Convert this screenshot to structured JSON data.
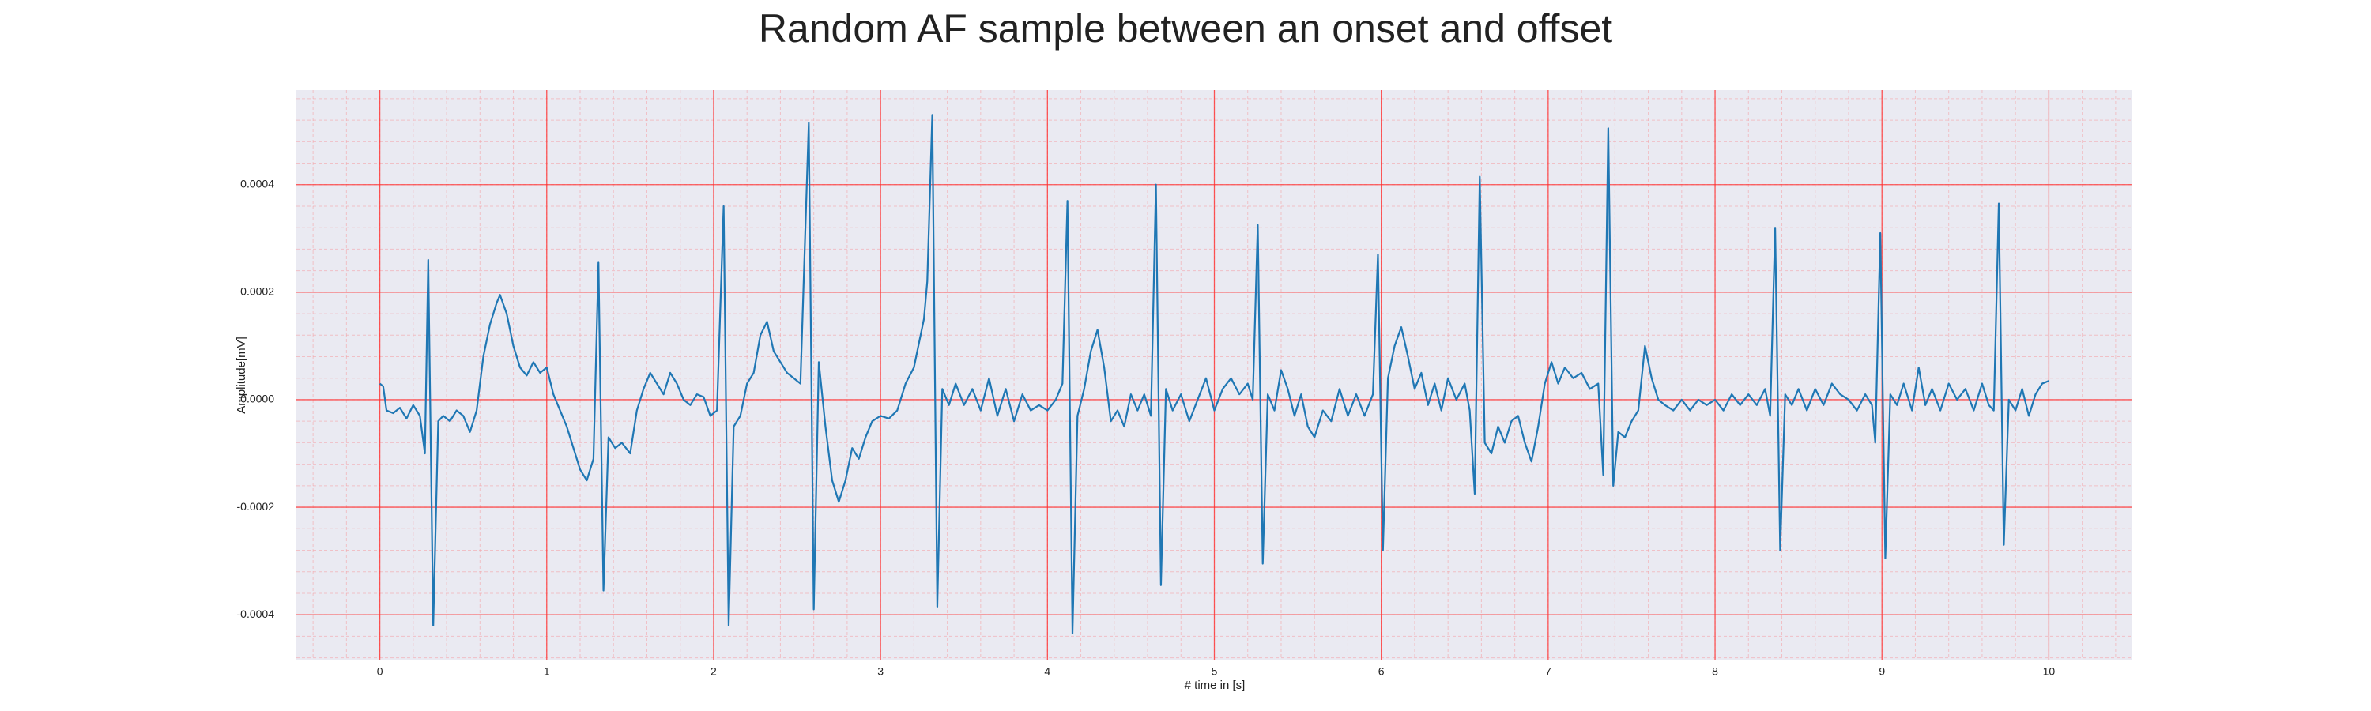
{
  "chart_data": {
    "type": "line",
    "title": "Random AF sample between an onset and offset",
    "xlabel": "# time in [s]",
    "ylabel": "Amplitude[mV]",
    "color": "#1f77b4",
    "grid": true,
    "minor_grid": true,
    "xlim": [
      -0.5,
      10.5
    ],
    "ylim": [
      -0.000485,
      0.000576
    ],
    "xticks": [
      0,
      1,
      2,
      3,
      4,
      5,
      6,
      7,
      8,
      9,
      10
    ],
    "yticks": [
      -0.0004,
      -0.0002,
      {
        "value": 0,
        "label": "0.0000"
      },
      0.0002,
      0.0004
    ],
    "x": [
      0,
      0.02,
      0.04,
      0.08,
      0.12,
      0.16,
      0.2,
      0.24,
      0.27,
      0.29,
      0.32,
      0.35,
      0.38,
      0.42,
      0.46,
      0.5,
      0.54,
      0.58,
      0.62,
      0.66,
      0.7,
      0.72,
      0.76,
      0.8,
      0.84,
      0.88,
      0.92,
      0.96,
      1.0,
      1.04,
      1.08,
      1.12,
      1.16,
      1.2,
      1.24,
      1.28,
      1.31,
      1.34,
      1.37,
      1.41,
      1.45,
      1.5,
      1.54,
      1.58,
      1.62,
      1.66,
      1.7,
      1.74,
      1.78,
      1.82,
      1.86,
      1.9,
      1.94,
      1.98,
      2.02,
      2.06,
      2.09,
      2.12,
      2.16,
      2.2,
      2.24,
      2.28,
      2.32,
      2.36,
      2.4,
      2.44,
      2.48,
      2.52,
      2.57,
      2.6,
      2.63,
      2.67,
      2.71,
      2.75,
      2.79,
      2.83,
      2.87,
      2.91,
      2.95,
      3.0,
      3.05,
      3.1,
      3.15,
      3.2,
      3.26,
      3.28,
      3.31,
      3.34,
      3.37,
      3.41,
      3.45,
      3.5,
      3.55,
      3.6,
      3.65,
      3.7,
      3.75,
      3.8,
      3.85,
      3.9,
      3.95,
      4.0,
      4.05,
      4.09,
      4.12,
      4.15,
      4.18,
      4.22,
      4.26,
      4.3,
      4.34,
      4.38,
      4.42,
      4.46,
      4.5,
      4.54,
      4.58,
      4.62,
      4.65,
      4.68,
      4.71,
      4.75,
      4.8,
      4.85,
      4.9,
      4.95,
      5.0,
      5.05,
      5.1,
      5.15,
      5.2,
      5.23,
      5.26,
      5.29,
      5.32,
      5.36,
      5.4,
      5.44,
      5.48,
      5.52,
      5.56,
      5.6,
      5.65,
      5.7,
      5.75,
      5.8,
      5.85,
      5.9,
      5.95,
      5.98,
      6.01,
      6.04,
      6.08,
      6.12,
      6.16,
      6.2,
      6.24,
      6.28,
      6.32,
      6.36,
      6.4,
      6.45,
      6.5,
      6.53,
      6.56,
      6.59,
      6.62,
      6.66,
      6.7,
      6.74,
      6.78,
      6.82,
      6.86,
      6.9,
      6.94,
      6.98,
      7.02,
      7.06,
      7.1,
      7.15,
      7.2,
      7.25,
      7.3,
      7.33,
      7.36,
      7.39,
      7.42,
      7.46,
      7.5,
      7.54,
      7.58,
      7.62,
      7.66,
      7.7,
      7.75,
      7.8,
      7.85,
      7.9,
      7.95,
      8.0,
      8.05,
      8.1,
      8.15,
      8.2,
      8.25,
      8.3,
      8.33,
      8.36,
      8.39,
      8.42,
      8.46,
      8.5,
      8.55,
      8.6,
      8.65,
      8.7,
      8.75,
      8.8,
      8.85,
      8.9,
      8.94,
      8.96,
      8.99,
      9.02,
      9.05,
      9.09,
      9.13,
      9.18,
      9.22,
      9.26,
      9.3,
      9.35,
      9.4,
      9.45,
      9.5,
      9.55,
      9.6,
      9.64,
      9.67,
      9.7,
      9.73,
      9.76,
      9.8,
      9.84,
      9.88,
      9.92,
      9.96,
      10.0
    ],
    "values": [
      3e-05,
      2.5e-05,
      -2e-05,
      -2.5e-05,
      -1.5e-05,
      -3.5e-05,
      -1e-05,
      -3e-05,
      -0.0001,
      0.00026,
      -0.00042,
      -4e-05,
      -3e-05,
      -4e-05,
      -2e-05,
      -3e-05,
      -6e-05,
      -2e-05,
      8e-05,
      0.00014,
      0.00018,
      0.000195,
      0.00016,
      0.0001,
      6e-05,
      4.5e-05,
      7e-05,
      5e-05,
      6e-05,
      1e-05,
      -2e-05,
      -5e-05,
      -9e-05,
      -0.00013,
      -0.00015,
      -0.00011,
      0.000255,
      -0.000355,
      -7e-05,
      -9e-05,
      -8e-05,
      -0.0001,
      -2e-05,
      2e-05,
      5e-05,
      3e-05,
      1e-05,
      5e-05,
      3e-05,
      0.0,
      -1e-05,
      1e-05,
      5e-06,
      -3e-05,
      -2e-05,
      0.00036,
      -0.00042,
      -5e-05,
      -3e-05,
      3e-05,
      5e-05,
      0.00012,
      0.000145,
      9e-05,
      7e-05,
      5e-05,
      4e-05,
      3e-05,
      0.000515,
      -0.00039,
      7e-05,
      -5e-05,
      -0.00015,
      -0.00019,
      -0.00015,
      -9e-05,
      -0.00011,
      -7e-05,
      -4e-05,
      -3e-05,
      -3.5e-05,
      -2e-05,
      3e-05,
      6e-05,
      0.00015,
      0.00022,
      0.00053,
      -0.000385,
      2e-05,
      -1e-05,
      3e-05,
      -1e-05,
      2e-05,
      -2e-05,
      4e-05,
      -3e-05,
      2e-05,
      -4e-05,
      1e-05,
      -2e-05,
      -1e-05,
      -2e-05,
      0.0,
      3e-05,
      0.00037,
      -0.000435,
      -3e-05,
      2e-05,
      9e-05,
      0.00013,
      6e-05,
      -4e-05,
      -2e-05,
      -5e-05,
      1e-05,
      -2e-05,
      1e-05,
      -3e-05,
      0.0004,
      -0.000345,
      2e-05,
      -2e-05,
      1e-05,
      -4e-05,
      0.0,
      4e-05,
      -2e-05,
      2e-05,
      4e-05,
      1e-05,
      3e-05,
      0.0,
      0.000325,
      -0.000305,
      1e-05,
      -2e-05,
      5.5e-05,
      2e-05,
      -3e-05,
      1e-05,
      -5e-05,
      -7e-05,
      -2e-05,
      -4e-05,
      2e-05,
      -3e-05,
      1e-05,
      -3e-05,
      1e-05,
      0.00027,
      -0.00028,
      4e-05,
      0.0001,
      0.000135,
      8e-05,
      2e-05,
      5e-05,
      -1e-05,
      3e-05,
      -2e-05,
      4e-05,
      0.0,
      3e-05,
      -2e-05,
      -0.000175,
      0.000415,
      -8e-05,
      -0.0001,
      -5e-05,
      -8e-05,
      -4e-05,
      -3e-05,
      -8e-05,
      -0.000115,
      -5e-05,
      3e-05,
      7e-05,
      3e-05,
      6e-05,
      4e-05,
      5e-05,
      2e-05,
      3e-05,
      -0.00014,
      0.000505,
      -0.00016,
      -6e-05,
      -7e-05,
      -4e-05,
      -2e-05,
      0.0001,
      4e-05,
      0.0,
      -1e-05,
      -2e-05,
      0.0,
      -2e-05,
      0.0,
      -1e-05,
      0.0,
      -2e-05,
      1e-05,
      -1e-05,
      1e-05,
      -1e-05,
      2e-05,
      -3e-05,
      0.00032,
      -0.00028,
      1e-05,
      -1e-05,
      2e-05,
      -2e-05,
      2e-05,
      -1e-05,
      3e-05,
      1e-05,
      0.0,
      -2e-05,
      1e-05,
      -1e-05,
      -8e-05,
      0.00031,
      -0.000295,
      1e-05,
      -1e-05,
      3e-05,
      -2e-05,
      6e-05,
      -1e-05,
      2e-05,
      -2e-05,
      3e-05,
      0.0,
      2e-05,
      -2e-05,
      3e-05,
      -1e-05,
      -2e-05,
      0.000365,
      -0.00027,
      0.0,
      -2e-05,
      2e-05,
      -3e-05,
      1e-05,
      3e-05,
      3.5e-05
    ]
  }
}
